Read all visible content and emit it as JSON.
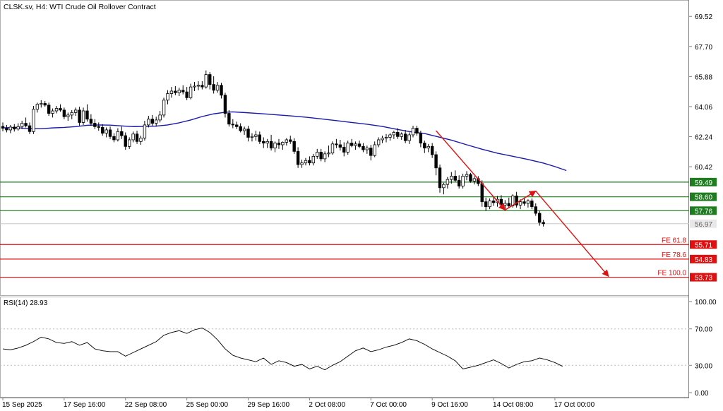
{
  "chart_data": {
    "type": "candlestick",
    "title": "CLSK.sv, H4:  WTI Crude Oil Rollover Contract",
    "colors": {
      "bull": "#000000",
      "bear": "#000000",
      "ma": "#1a1aa8",
      "support": "#1e7d1e",
      "target": "#e01010",
      "rsi": "#000000"
    },
    "x_ticks": [
      "15 Sep 2025",
      "17 Sep 16:00",
      "22 Sep 08:00",
      "25 Sep 00:00",
      "29 Sep 16:00",
      "2 Oct 08:00",
      "7 Oct 00:00",
      "9 Oct 16:00",
      "14 Oct 08:00",
      "17 Oct 00:00"
    ],
    "y_ticks": [
      69.52,
      67.7,
      65.88,
      64.06,
      62.24,
      60.42
    ],
    "ylim": [
      52.9,
      70.3
    ],
    "price_levels": [
      {
        "value": 59.49,
        "label": "59.49",
        "tag": "",
        "color": "#1e7d1e"
      },
      {
        "value": 58.6,
        "label": "58.60",
        "tag": "",
        "color": "#1e7d1e"
      },
      {
        "value": 57.76,
        "label": "57.76",
        "tag": "",
        "color": "#1e7d1e"
      },
      {
        "value": 55.71,
        "label": "55.71",
        "tag": "FE 61.8",
        "color": "#e01010"
      },
      {
        "value": 54.83,
        "label": "54.83",
        "tag": "FE 78.6",
        "color": "#e01010"
      },
      {
        "value": 53.73,
        "label": "53.73",
        "tag": "FE 100.0",
        "color": "#e01010"
      }
    ],
    "current_price": {
      "value": 56.97,
      "label": "56.97"
    },
    "candles": [
      [
        62.86,
        63.1,
        62.56,
        62.75
      ],
      [
        62.75,
        62.95,
        62.5,
        62.65
      ],
      [
        62.65,
        62.95,
        62.45,
        62.82
      ],
      [
        62.82,
        63.0,
        62.55,
        62.7
      ],
      [
        62.7,
        63.05,
        62.6,
        62.85
      ],
      [
        62.85,
        63.2,
        62.7,
        63.05
      ],
      [
        63.05,
        63.4,
        62.8,
        62.9
      ],
      [
        62.9,
        63.1,
        62.4,
        62.55
      ],
      [
        62.55,
        64.1,
        62.4,
        63.9
      ],
      [
        63.9,
        64.3,
        63.7,
        64.2
      ],
      [
        64.2,
        64.45,
        64.0,
        64.25
      ],
      [
        64.25,
        64.4,
        64.05,
        64.15
      ],
      [
        64.15,
        64.3,
        63.5,
        63.65
      ],
      [
        63.65,
        63.95,
        63.4,
        63.8
      ],
      [
        63.8,
        64.1,
        63.65,
        63.95
      ],
      [
        63.95,
        64.2,
        63.75,
        63.85
      ],
      [
        63.85,
        64.0,
        63.3,
        63.45
      ],
      [
        63.45,
        63.7,
        63.2,
        63.55
      ],
      [
        63.55,
        63.85,
        63.3,
        63.7
      ],
      [
        63.7,
        64.0,
        63.5,
        63.85
      ],
      [
        63.85,
        64.05,
        62.9,
        63.1
      ],
      [
        63.1,
        64.0,
        62.95,
        63.8
      ],
      [
        63.8,
        64.2,
        63.15,
        63.3
      ],
      [
        63.3,
        63.6,
        62.9,
        63.05
      ],
      [
        63.05,
        63.3,
        62.7,
        62.85
      ],
      [
        62.85,
        63.1,
        62.6,
        62.8
      ],
      [
        62.8,
        63.0,
        62.3,
        62.45
      ],
      [
        62.45,
        62.8,
        62.2,
        62.65
      ],
      [
        62.65,
        62.85,
        62.1,
        62.25
      ],
      [
        62.25,
        62.45,
        61.9,
        62.05
      ],
      [
        62.05,
        62.75,
        61.95,
        62.55
      ],
      [
        62.55,
        62.85,
        62.1,
        62.3
      ],
      [
        62.3,
        62.5,
        61.45,
        61.65
      ],
      [
        61.65,
        62.2,
        61.5,
        62.05
      ],
      [
        62.05,
        62.55,
        61.9,
        62.4
      ],
      [
        62.4,
        62.6,
        61.8,
        61.95
      ],
      [
        61.95,
        62.3,
        61.75,
        62.15
      ],
      [
        62.15,
        63.2,
        62.0,
        62.95
      ],
      [
        62.95,
        63.5,
        62.8,
        63.3
      ],
      [
        63.3,
        63.55,
        62.9,
        63.05
      ],
      [
        63.05,
        63.45,
        62.85,
        63.25
      ],
      [
        63.25,
        63.8,
        63.1,
        63.55
      ],
      [
        63.55,
        64.6,
        63.4,
        64.45
      ],
      [
        64.45,
        65.05,
        64.2,
        64.85
      ],
      [
        64.85,
        65.25,
        64.6,
        65.0
      ],
      [
        65.0,
        65.3,
        64.75,
        64.9
      ],
      [
        64.9,
        65.2,
        64.7,
        65.05
      ],
      [
        65.05,
        65.35,
        64.8,
        64.95
      ],
      [
        64.95,
        65.25,
        64.45,
        64.6
      ],
      [
        64.6,
        65.45,
        64.5,
        65.25
      ],
      [
        65.25,
        65.55,
        65.0,
        65.3
      ],
      [
        65.3,
        65.6,
        65.05,
        65.35
      ],
      [
        65.35,
        65.6,
        65.1,
        65.25
      ],
      [
        65.25,
        66.25,
        65.15,
        66.0
      ],
      [
        66.0,
        66.15,
        65.1,
        65.4
      ],
      [
        65.4,
        65.9,
        64.85,
        65.05
      ],
      [
        65.05,
        65.55,
        64.9,
        65.35
      ],
      [
        65.35,
        65.5,
        64.55,
        64.75
      ],
      [
        64.75,
        64.9,
        63.4,
        63.65
      ],
      [
        63.65,
        63.85,
        62.85,
        63.0
      ],
      [
        63.0,
        63.3,
        62.75,
        62.95
      ],
      [
        62.95,
        63.15,
        62.7,
        62.85
      ],
      [
        62.85,
        63.05,
        62.5,
        62.6
      ],
      [
        62.6,
        62.85,
        62.35,
        62.7
      ],
      [
        62.7,
        62.9,
        61.95,
        62.2
      ],
      [
        62.2,
        62.45,
        61.95,
        62.25
      ],
      [
        62.25,
        62.6,
        62.0,
        62.35
      ],
      [
        62.35,
        62.55,
        61.8,
        61.95
      ],
      [
        61.95,
        62.2,
        61.55,
        61.85
      ],
      [
        61.85,
        62.1,
        61.55,
        61.95
      ],
      [
        61.95,
        62.35,
        61.4,
        61.55
      ],
      [
        61.55,
        61.95,
        61.3,
        61.85
      ],
      [
        61.85,
        62.1,
        61.5,
        61.75
      ],
      [
        61.75,
        61.95,
        61.45,
        61.9
      ],
      [
        61.9,
        62.15,
        61.7,
        62.05
      ],
      [
        62.05,
        62.3,
        61.8,
        61.95
      ],
      [
        61.95,
        62.15,
        61.2,
        61.35
      ],
      [
        61.35,
        61.6,
        60.35,
        60.55
      ],
      [
        60.55,
        60.85,
        60.35,
        60.65
      ],
      [
        60.65,
        60.95,
        60.5,
        60.8
      ],
      [
        60.8,
        61.05,
        60.5,
        60.65
      ],
      [
        60.65,
        61.2,
        60.5,
        61.05
      ],
      [
        61.05,
        61.5,
        60.9,
        61.3
      ],
      [
        61.3,
        61.5,
        60.75,
        60.9
      ],
      [
        60.9,
        61.35,
        60.7,
        61.2
      ],
      [
        61.2,
        61.7,
        61.0,
        61.25
      ],
      [
        61.25,
        61.95,
        61.15,
        61.8
      ],
      [
        61.8,
        62.1,
        61.55,
        61.75
      ],
      [
        61.75,
        62.05,
        61.4,
        61.6
      ],
      [
        61.6,
        61.9,
        61.05,
        61.3
      ],
      [
        61.3,
        62.0,
        61.15,
        61.85
      ],
      [
        61.85,
        62.1,
        61.6,
        61.7
      ],
      [
        61.7,
        61.95,
        61.45,
        61.8
      ],
      [
        61.8,
        62.0,
        61.55,
        61.65
      ],
      [
        61.65,
        61.85,
        61.3,
        61.45
      ],
      [
        61.45,
        61.7,
        61.2,
        61.55
      ],
      [
        61.55,
        61.75,
        60.8,
        61.1
      ],
      [
        61.1,
        61.95,
        61.0,
        61.75
      ],
      [
        61.75,
        62.2,
        61.6,
        62.05
      ],
      [
        62.05,
        62.3,
        61.85,
        62.15
      ],
      [
        62.15,
        62.4,
        61.9,
        62.2
      ],
      [
        62.2,
        62.45,
        62.0,
        62.35
      ],
      [
        62.35,
        62.6,
        62.1,
        62.5
      ],
      [
        62.5,
        62.75,
        62.1,
        62.25
      ],
      [
        62.25,
        62.5,
        62.05,
        62.4
      ],
      [
        62.4,
        62.65,
        61.85,
        62.0
      ],
      [
        62.0,
        62.5,
        61.8,
        62.35
      ],
      [
        62.35,
        62.9,
        62.2,
        62.75
      ],
      [
        62.75,
        62.9,
        62.3,
        62.45
      ],
      [
        62.45,
        62.6,
        61.6,
        61.85
      ],
      [
        61.85,
        62.0,
        61.25,
        61.55
      ],
      [
        61.55,
        61.8,
        61.3,
        61.65
      ],
      [
        61.65,
        61.85,
        60.95,
        61.15
      ],
      [
        61.15,
        61.35,
        59.9,
        60.35
      ],
      [
        60.35,
        60.55,
        58.85,
        59.15
      ],
      [
        59.15,
        59.45,
        58.75,
        59.35
      ],
      [
        59.35,
        59.8,
        59.1,
        59.65
      ],
      [
        59.65,
        60.1,
        59.4,
        59.85
      ],
      [
        59.85,
        60.2,
        59.5,
        59.6
      ],
      [
        59.6,
        59.9,
        59.1,
        59.25
      ],
      [
        59.25,
        60.0,
        59.1,
        59.85
      ],
      [
        59.85,
        60.15,
        59.6,
        59.95
      ],
      [
        59.95,
        60.05,
        59.45,
        59.55
      ],
      [
        59.55,
        59.85,
        59.35,
        59.7
      ],
      [
        59.7,
        59.85,
        59.25,
        59.4
      ],
      [
        59.4,
        59.6,
        58.0,
        58.3
      ],
      [
        58.3,
        58.55,
        57.75,
        58.0
      ],
      [
        58.0,
        58.5,
        57.85,
        58.35
      ],
      [
        58.35,
        58.6,
        58.05,
        58.25
      ],
      [
        58.25,
        58.65,
        58.0,
        58.45
      ],
      [
        58.45,
        58.7,
        57.95,
        58.1
      ],
      [
        58.1,
        58.4,
        57.85,
        58.2
      ],
      [
        58.2,
        58.55,
        57.9,
        58.05
      ],
      [
        58.05,
        58.75,
        57.95,
        58.65
      ],
      [
        58.65,
        58.9,
        57.95,
        58.1
      ],
      [
        58.1,
        58.45,
        57.85,
        58.3
      ],
      [
        58.3,
        58.55,
        58.05,
        58.2
      ],
      [
        58.2,
        58.45,
        57.95,
        58.35
      ],
      [
        58.35,
        58.5,
        57.85,
        58.0
      ],
      [
        58.0,
        58.2,
        57.45,
        57.6
      ],
      [
        57.6,
        57.75,
        56.85,
        57.05
      ],
      [
        57.05,
        57.2,
        56.8,
        56.97
      ]
    ],
    "moving_average": [
      [
        0,
        62.77
      ],
      [
        3,
        62.8
      ],
      [
        7,
        62.72
      ],
      [
        10,
        62.72
      ],
      [
        13,
        62.77
      ],
      [
        16,
        62.8
      ],
      [
        19,
        62.85
      ],
      [
        22,
        62.93
      ],
      [
        25,
        62.95
      ],
      [
        28,
        62.94
      ],
      [
        31,
        62.89
      ],
      [
        34,
        62.85
      ],
      [
        37,
        62.86
      ],
      [
        40,
        62.88
      ],
      [
        43,
        62.95
      ],
      [
        46,
        63.08
      ],
      [
        49,
        63.25
      ],
      [
        52,
        63.46
      ],
      [
        55,
        63.62
      ],
      [
        58,
        63.72
      ],
      [
        60,
        63.74
      ],
      [
        63,
        63.7
      ],
      [
        67,
        63.64
      ],
      [
        71,
        63.57
      ],
      [
        75,
        63.5
      ],
      [
        79,
        63.42
      ],
      [
        83,
        63.32
      ],
      [
        87,
        63.21
      ],
      [
        91,
        63.1
      ],
      [
        95,
        62.99
      ],
      [
        99,
        62.86
      ],
      [
        102,
        62.72
      ],
      [
        106,
        62.55
      ],
      [
        110,
        62.43
      ],
      [
        113,
        62.26
      ],
      [
        117,
        62.03
      ],
      [
        121,
        61.75
      ],
      [
        125,
        61.48
      ],
      [
        129,
        61.24
      ],
      [
        133,
        61.05
      ],
      [
        137,
        60.86
      ],
      [
        141,
        60.64
      ],
      [
        144,
        60.43
      ],
      [
        147,
        60.19
      ]
    ],
    "pattern_lines": [
      {
        "from": [
          113,
          62.6
        ],
        "to": [
          131,
          57.8
        ]
      },
      {
        "from": [
          131,
          57.8
        ],
        "to": [
          139,
          58.95
        ]
      },
      {
        "from": [
          139,
          58.95
        ],
        "to": [
          158,
          53.78
        ]
      }
    ],
    "rsi": {
      "label": "RSI(14) 28.93",
      "ylim": [
        0,
        100
      ],
      "ticks": [
        100.0,
        70.0,
        30.0,
        0.0
      ],
      "levels": [
        70,
        30
      ],
      "values": [
        [
          0,
          48
        ],
        [
          2,
          47
        ],
        [
          4,
          49
        ],
        [
          6,
          52
        ],
        [
          8,
          56
        ],
        [
          10,
          61
        ],
        [
          12,
          59
        ],
        [
          14,
          55
        ],
        [
          16,
          54
        ],
        [
          18,
          56
        ],
        [
          20,
          52
        ],
        [
          22,
          55
        ],
        [
          24,
          48
        ],
        [
          26,
          46
        ],
        [
          28,
          45
        ],
        [
          30,
          45
        ],
        [
          32,
          40
        ],
        [
          34,
          44
        ],
        [
          36,
          48
        ],
        [
          38,
          52
        ],
        [
          40,
          56
        ],
        [
          42,
          63
        ],
        [
          44,
          66
        ],
        [
          46,
          68
        ],
        [
          48,
          65
        ],
        [
          50,
          69
        ],
        [
          52,
          71
        ],
        [
          54,
          66
        ],
        [
          56,
          58
        ],
        [
          58,
          48
        ],
        [
          60,
          41
        ],
        [
          62,
          38
        ],
        [
          64,
          36
        ],
        [
          66,
          34
        ],
        [
          68,
          38
        ],
        [
          70,
          31
        ],
        [
          72,
          35
        ],
        [
          74,
          33
        ],
        [
          76,
          29
        ],
        [
          78,
          31
        ],
        [
          80,
          26
        ],
        [
          82,
          29
        ],
        [
          84,
          25
        ],
        [
          86,
          30
        ],
        [
          88,
          34
        ],
        [
          90,
          40
        ],
        [
          92,
          46
        ],
        [
          94,
          49
        ],
        [
          96,
          45
        ],
        [
          98,
          47
        ],
        [
          100,
          50
        ],
        [
          102,
          52
        ],
        [
          104,
          55
        ],
        [
          106,
          59
        ],
        [
          108,
          57
        ],
        [
          110,
          53
        ],
        [
          112,
          48
        ],
        [
          114,
          44
        ],
        [
          116,
          40
        ],
        [
          118,
          35
        ],
        [
          120,
          26
        ],
        [
          122,
          28
        ],
        [
          124,
          30
        ],
        [
          126,
          33
        ],
        [
          128,
          36
        ],
        [
          130,
          32
        ],
        [
          132,
          27
        ],
        [
          134,
          31
        ],
        [
          136,
          34
        ],
        [
          138,
          35
        ],
        [
          140,
          38
        ],
        [
          142,
          36
        ],
        [
          144,
          33
        ],
        [
          146,
          28.93
        ]
      ]
    }
  }
}
